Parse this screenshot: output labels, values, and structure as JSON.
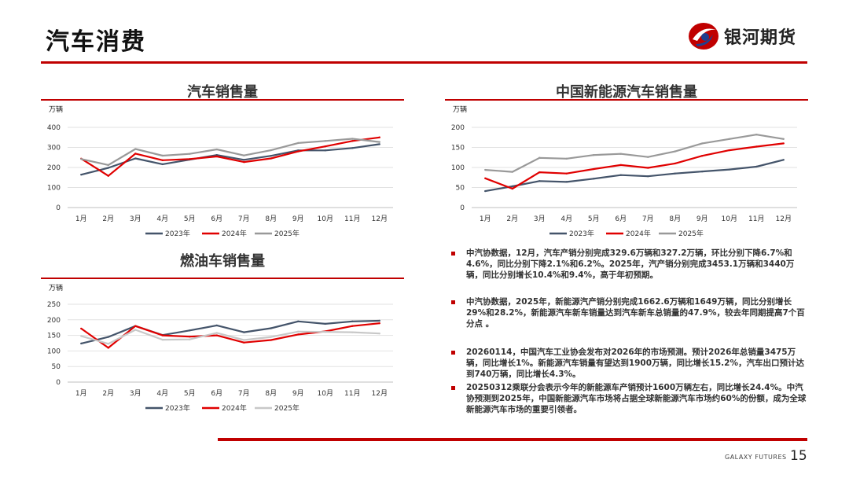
{
  "header": {
    "title": "汽车消费",
    "brand_name": "银河期货"
  },
  "footer": {
    "brand": "GALAXY FUTURES",
    "page_number": "15"
  },
  "colors": {
    "accent": "#c00000",
    "series_2023": "#44546a",
    "series_2024": "#e00000",
    "series_2025_gray": "#999999",
    "series_2025_light": "#c8c8c8"
  },
  "chart_data": [
    {
      "id": "auto-sales",
      "type": "line",
      "title": "汽车销售量",
      "unit": "万辆",
      "ylim": [
        0,
        400
      ],
      "yticks": [
        0,
        100,
        200,
        300,
        400
      ],
      "categories": [
        "1月",
        "2月",
        "3月",
        "4月",
        "5月",
        "6月",
        "7月",
        "8月",
        "9月",
        "10月",
        "11月",
        "12月"
      ],
      "series": [
        {
          "name": "2023年",
          "color": "#44546a",
          "values": [
            164,
            198,
            245,
            216,
            239,
            262,
            238,
            258,
            285,
            285,
            297,
            316
          ]
        },
        {
          "name": "2024年",
          "color": "#e00000",
          "values": [
            244,
            158,
            269,
            236,
            242,
            255,
            227,
            245,
            280,
            305,
            332,
            350
          ]
        },
        {
          "name": "2025年",
          "color": "#999999",
          "values": [
            242,
            212,
            292,
            259,
            268,
            290,
            260,
            286,
            322,
            332,
            343,
            327
          ]
        }
      ]
    },
    {
      "id": "fuel-sales",
      "type": "line",
      "title": "燃油车销售量",
      "unit": "万辆",
      "ylim": [
        0,
        250
      ],
      "yticks": [
        0,
        50,
        100,
        150,
        200,
        250
      ],
      "categories": [
        "1月",
        "2月",
        "3月",
        "4月",
        "5月",
        "6月",
        "7月",
        "8月",
        "9月",
        "10月",
        "11月",
        "12月"
      ],
      "series": [
        {
          "name": "2023年",
          "color": "#44546a",
          "values": [
            124,
            145,
            180,
            151,
            166,
            182,
            160,
            173,
            195,
            187,
            195,
            197
          ]
        },
        {
          "name": "2024年",
          "color": "#e00000",
          "values": [
            172,
            110,
            180,
            150,
            146,
            150,
            127,
            135,
            153,
            163,
            180,
            189
          ]
        },
        {
          "name": "2025年",
          "color": "#c8c8c8",
          "values": [
            148,
            123,
            168,
            136,
            137,
            158,
            135,
            145,
            162,
            161,
            160,
            156
          ]
        }
      ]
    },
    {
      "id": "nev-sales",
      "type": "line",
      "title": "中国新能源汽车销售量",
      "unit": "万辆",
      "ylim": [
        0,
        200
      ],
      "yticks": [
        0,
        50,
        100,
        150,
        200
      ],
      "categories": [
        "1月",
        "2月",
        "3月",
        "4月",
        "5月",
        "6月",
        "7月",
        "8月",
        "9月",
        "10月",
        "11月",
        "12月"
      ],
      "series": [
        {
          "name": "2023年",
          "color": "#44546a",
          "values": [
            41,
            53,
            66,
            64,
            72,
            81,
            78,
            85,
            90,
            95,
            102,
            119
          ]
        },
        {
          "name": "2024年",
          "color": "#e00000",
          "values": [
            73,
            47,
            88,
            85,
            96,
            106,
            99,
            110,
            129,
            143,
            152,
            160
          ]
        },
        {
          "name": "2025年",
          "color": "#999999",
          "values": [
            94,
            89,
            124,
            122,
            131,
            134,
            126,
            140,
            160,
            171,
            182,
            171
          ]
        }
      ]
    }
  ],
  "bullets": [
    "中汽协数据，12月，汽车产销分别完成329.6万辆和327.2万辆，环比分别下降6.7%和4.6%，同比分别下降2.1%和6.2%。2025年，汽产销分别完成3453.1万辆和3440万辆，同比分别增长10.4%和9.4%，高于年初预期。",
    "中汽协数据，2025年，新能源汽产销分别完成1662.6万辆和1649万辆，同比分别增长29%和28.2%，新能源汽车新车销量达到汽车新车总销量的47.9%，较去年同期提高7个百分点 。",
    "20260114，中国汽车工业协会发布对2026年的市场预测。预计2026年总销量3475万辆，同比增长1%。新能源汽车销量有望达到1900万辆，同比增长15.2%，汽车出口预计达到740万辆，同比增长4.3%。",
    "20250312乘联分会表示今年的新能源车产销预计1600万辆左右，同比增长24.4%。中汽协预测到2025年，中国新能源汽车市场将占据全球新能源汽车市场约60%的份额，成为全球新能源汽车市场的重要引领者。"
  ]
}
